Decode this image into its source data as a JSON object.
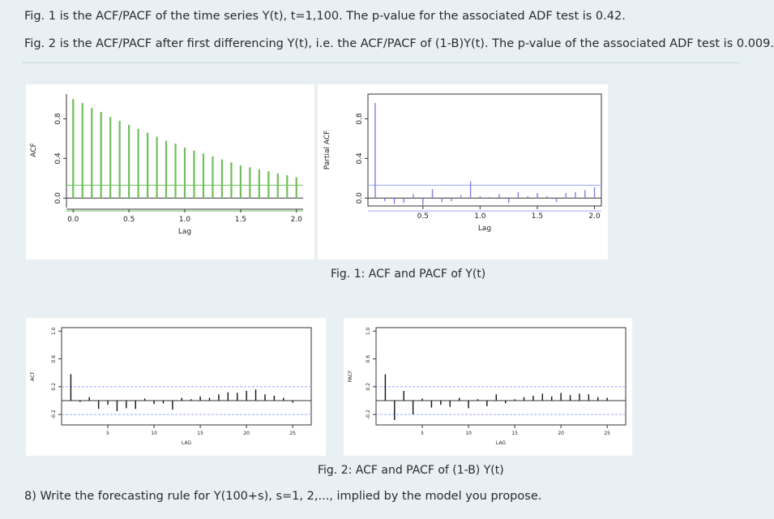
{
  "text": {
    "line1": "Fig. 1 is the ACF/PACF of the time series Y(t), t=1,100. The p-value for the associated ADF test is 0.42.",
    "line2": "Fig. 2 is the ACF/PACF after first differencing Y(t), i.e. the ACF/PACF of (1-B)Y(t). The p-value of the associated ADF test is 0.009.",
    "fig1_caption": "Fig. 1: ACF and PACF of Y(t)",
    "fig2_caption": "Fig. 2: ACF and PACF of (1-B) Y(t)",
    "question": "8) Write the forecasting rule for Y(100+s), s=1, 2,..., implied by the model you propose."
  },
  "colors": {
    "fig1_bar": "#6fbf5a",
    "fig1_pacf_bar": "#7e7ee0",
    "conf_band": "#9aa6ff",
    "fig2_bar": "#111111",
    "axis": "#333333"
  },
  "chart_data": [
    {
      "id": "fig1-acf",
      "type": "bar",
      "ylabel": "ACF",
      "xlabel": "Lag",
      "xlim": [
        -0.06,
        2.06
      ],
      "ylim": [
        -0.08,
        1.05
      ],
      "xticks": [
        "0.0",
        "0.5",
        "1.0",
        "1.5",
        "2.0"
      ],
      "xtick_values": [
        0,
        0.5,
        1,
        1.5,
        2
      ],
      "yticks": [
        "0.0",
        "0.4",
        "0.8"
      ],
      "ytick_values": [
        0,
        0.4,
        0.8
      ],
      "conf": 0.13,
      "x": [
        0,
        0.0833,
        0.1667,
        0.25,
        0.3333,
        0.4167,
        0.5,
        0.5833,
        0.6667,
        0.75,
        0.8333,
        0.9167,
        1,
        1.0833,
        1.1667,
        1.25,
        1.3333,
        1.4167,
        1.5,
        1.5833,
        1.6667,
        1.75,
        1.8333,
        1.9167,
        2
      ],
      "values": [
        1.0,
        0.96,
        0.91,
        0.87,
        0.82,
        0.78,
        0.74,
        0.7,
        0.66,
        0.62,
        0.58,
        0.55,
        0.51,
        0.48,
        0.45,
        0.42,
        0.39,
        0.36,
        0.33,
        0.31,
        0.29,
        0.27,
        0.25,
        0.23,
        0.21
      ]
    },
    {
      "id": "fig1-pacf",
      "type": "bar",
      "ylabel": "Partial ACF",
      "xlabel": "Lag",
      "xlim": [
        0.02,
        2.06
      ],
      "ylim": [
        -0.08,
        1.05
      ],
      "xticks": [
        "0.5",
        "1.0",
        "1.5",
        "2.0"
      ],
      "xtick_values": [
        0.5,
        1,
        1.5,
        2
      ],
      "yticks": [
        "0.0",
        "0.4",
        "0.8"
      ],
      "ytick_values": [
        0,
        0.4,
        0.8
      ],
      "conf": 0.13,
      "x": [
        0.0833,
        0.1667,
        0.25,
        0.3333,
        0.4167,
        0.5,
        0.5833,
        0.6667,
        0.75,
        0.8333,
        0.9167,
        1,
        1.0833,
        1.1667,
        1.25,
        1.3333,
        1.4167,
        1.5,
        1.5833,
        1.6667,
        1.75,
        1.8333,
        1.9167,
        2
      ],
      "values": [
        0.96,
        -0.03,
        -0.06,
        -0.05,
        0.04,
        -0.07,
        0.09,
        -0.04,
        -0.03,
        0.03,
        0.17,
        0.02,
        0.01,
        0.04,
        -0.05,
        0.06,
        0.02,
        0.05,
        0.02,
        -0.04,
        0.05,
        0.06,
        0.08,
        0.11
      ]
    },
    {
      "id": "fig2-acf",
      "type": "bar",
      "ylabel": "ACF",
      "xlabel": "LAG",
      "xlim": [
        0,
        27
      ],
      "ylim": [
        -0.35,
        1.05
      ],
      "xticks": [
        "5",
        "10",
        "15",
        "20",
        "25"
      ],
      "xtick_values": [
        5,
        10,
        15,
        20,
        25
      ],
      "yticks": [
        "-0.2",
        "0.2",
        "0.6",
        "1.0"
      ],
      "ytick_values": [
        -0.2,
        0.2,
        0.6,
        1.0
      ],
      "conf": 0.2,
      "x": [
        1,
        2,
        3,
        4,
        5,
        6,
        7,
        8,
        9,
        10,
        11,
        12,
        13,
        14,
        15,
        16,
        17,
        18,
        19,
        20,
        21,
        22,
        23,
        24,
        25
      ],
      "values": [
        0.38,
        -0.02,
        0.05,
        -0.12,
        -0.06,
        -0.15,
        -0.11,
        -0.12,
        0.03,
        -0.05,
        -0.04,
        -0.13,
        0.04,
        0.02,
        0.06,
        0.04,
        0.09,
        0.12,
        0.11,
        0.14,
        0.16,
        0.09,
        0.07,
        0.04,
        -0.03
      ]
    },
    {
      "id": "fig2-pacf",
      "type": "bar",
      "ylabel": "PACF",
      "xlabel": "LAG",
      "xlim": [
        0,
        27
      ],
      "ylim": [
        -0.35,
        1.05
      ],
      "xticks": [
        "5",
        "10",
        "15",
        "20",
        "25"
      ],
      "xtick_values": [
        5,
        10,
        15,
        20,
        25
      ],
      "yticks": [
        "-0.2",
        "0.2",
        "0.6",
        "1.0"
      ],
      "ytick_values": [
        -0.2,
        0.2,
        0.6,
        1.0
      ],
      "conf": 0.2,
      "x": [
        1,
        2,
        3,
        4,
        5,
        6,
        7,
        8,
        9,
        10,
        11,
        12,
        13,
        14,
        15,
        16,
        17,
        18,
        19,
        20,
        21,
        22,
        23,
        24,
        25
      ],
      "values": [
        0.38,
        -0.28,
        0.14,
        -0.2,
        0.03,
        -0.1,
        -0.06,
        -0.09,
        0.04,
        -0.11,
        0.02,
        -0.08,
        0.09,
        -0.04,
        0.02,
        0.05,
        0.07,
        0.1,
        0.06,
        0.11,
        0.08,
        0.1,
        0.09,
        0.05,
        0.04
      ]
    }
  ]
}
